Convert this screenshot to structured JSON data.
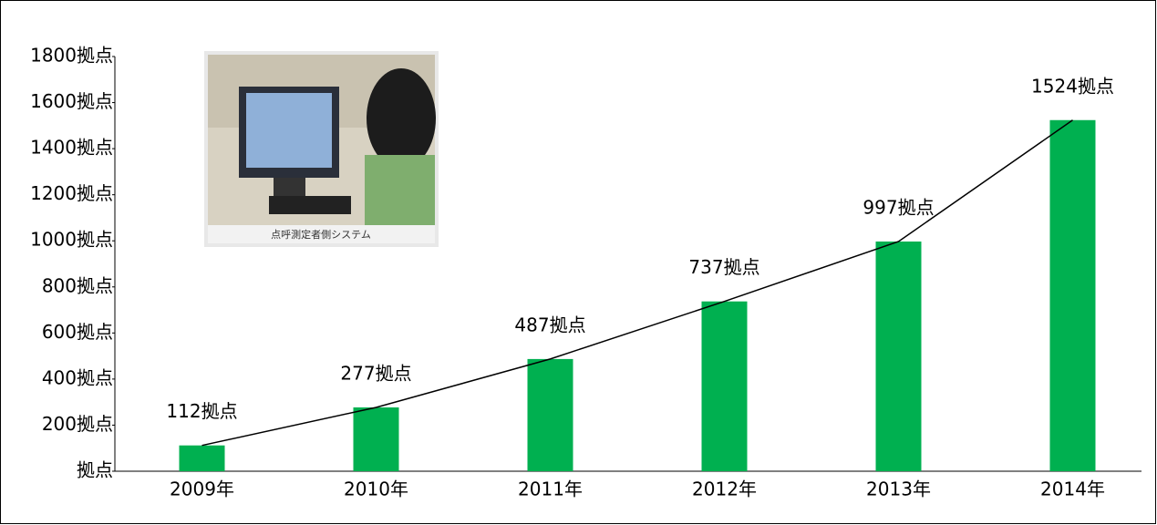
{
  "chart_data": {
    "type": "bar",
    "categories": [
      "2009年",
      "2010年",
      "2011年",
      "2012年",
      "2013年",
      "2014年"
    ],
    "values": [
      112,
      277,
      487,
      737,
      997,
      1524
    ],
    "value_labels": [
      "112拠点",
      "277拠点",
      "487拠点",
      "737拠点",
      "997拠点",
      "1524拠点"
    ],
    "color": "#00b050",
    "line": true,
    "ylim": [
      0,
      1800
    ],
    "yticks": [
      {
        "value": 0,
        "label": "拠点"
      },
      {
        "value": 200,
        "label": "200拠点"
      },
      {
        "value": 400,
        "label": "400拠点"
      },
      {
        "value": 600,
        "label": "600拠点"
      },
      {
        "value": 800,
        "label": "800拠点"
      },
      {
        "value": 1000,
        "label": "1000拠点"
      },
      {
        "value": 1200,
        "label": "1200拠点"
      },
      {
        "value": 1400,
        "label": "1400拠点"
      },
      {
        "value": 1600,
        "label": "1600拠点"
      },
      {
        "value": 1800,
        "label": "1800拠点"
      }
    ],
    "annotations": [
      "点呼測定者側システム"
    ]
  }
}
